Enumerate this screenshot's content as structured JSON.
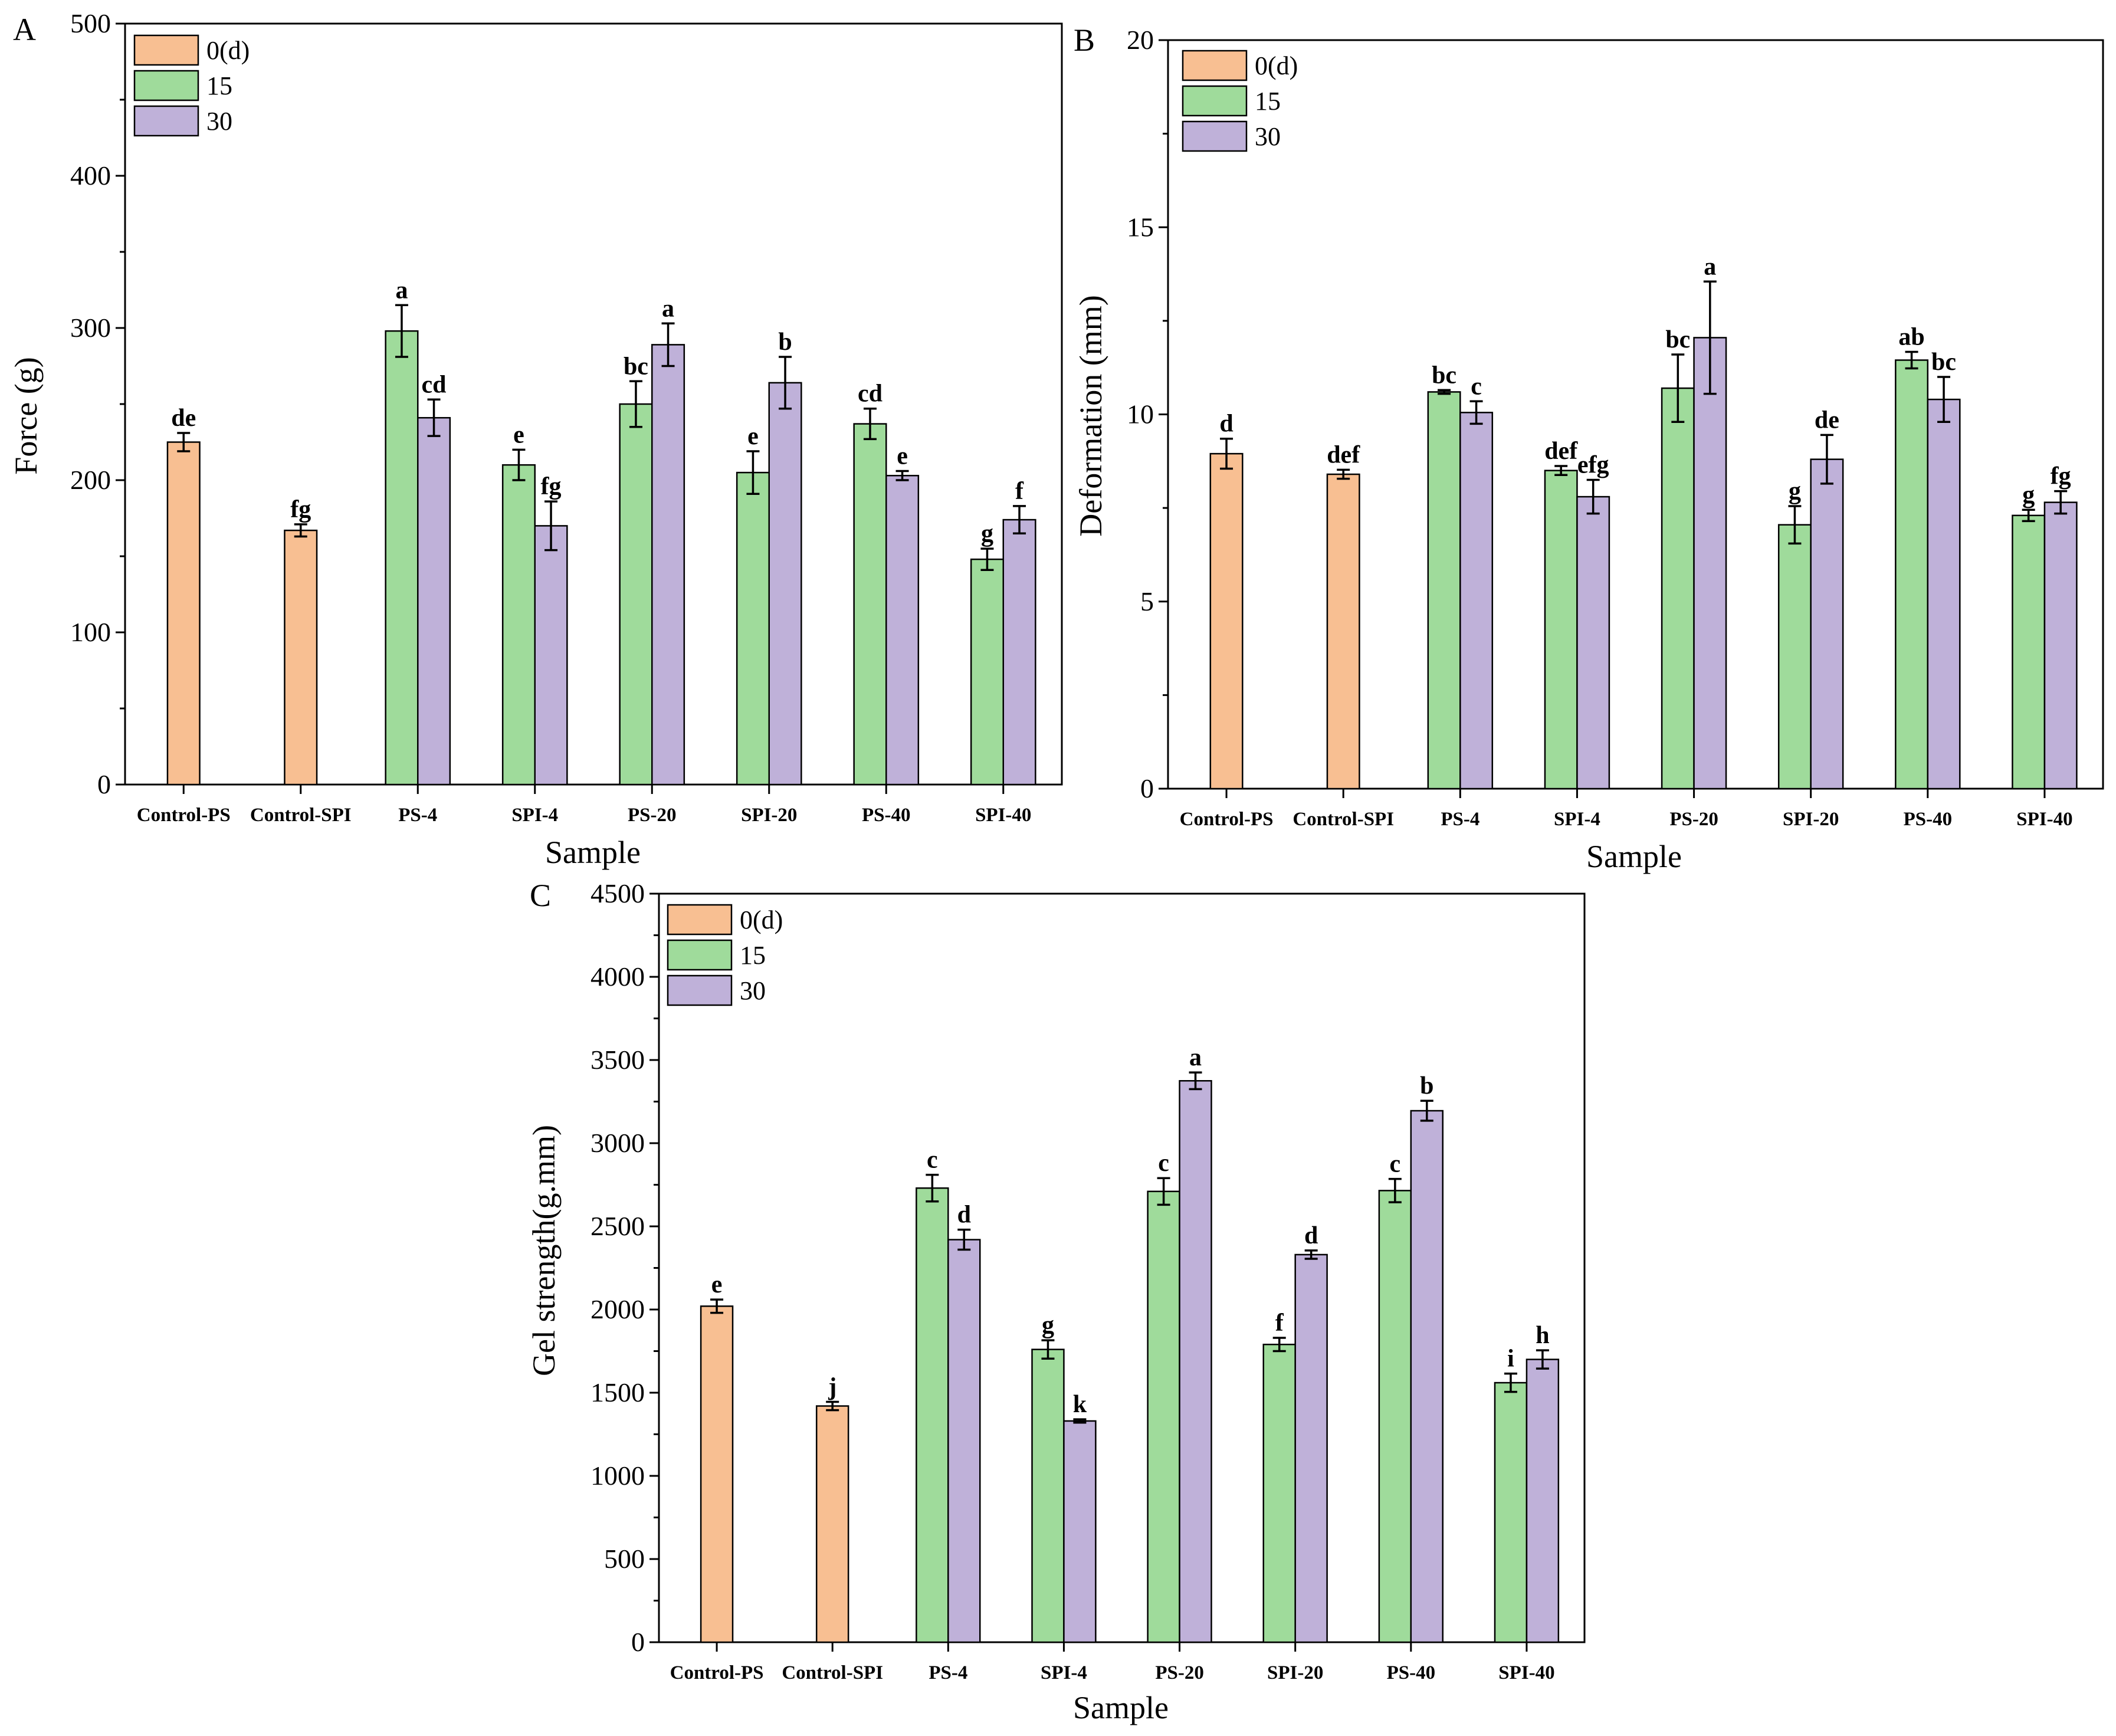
{
  "colors": {
    "d0": "#f8bf92",
    "d15": "#9fdb9b",
    "d30": "#bfb1d9",
    "axis": "#000000"
  },
  "legend": [
    "0(d)",
    "15",
    "30"
  ],
  "categories": [
    "Control-PS",
    "Control-SPI",
    "PS-4",
    "SPI-4",
    "PS-20",
    "SPI-20",
    "PS-40",
    "SPI-40"
  ],
  "chart_data": [
    {
      "panel": "A",
      "type": "bar",
      "xlabel": "Sample",
      "ylabel": "Force (g)",
      "ylim": [
        0,
        500
      ],
      "yticks": [
        0,
        100,
        200,
        300,
        400,
        500
      ],
      "categories": [
        "Control-PS",
        "Control-SPI",
        "PS-4",
        "SPI-4",
        "PS-20",
        "SPI-20",
        "PS-40",
        "SPI-40"
      ],
      "series": [
        {
          "name": "0(d)",
          "values": [
            225,
            167,
            null,
            null,
            null,
            null,
            null,
            null
          ],
          "errors": [
            6,
            4,
            null,
            null,
            null,
            null,
            null,
            null
          ],
          "labels": [
            "de",
            "fg",
            null,
            null,
            null,
            null,
            null,
            null
          ]
        },
        {
          "name": "15",
          "values": [
            null,
            null,
            298,
            210,
            250,
            205,
            237,
            148
          ],
          "errors": [
            null,
            null,
            17,
            10,
            15,
            14,
            10,
            7
          ],
          "labels": [
            null,
            null,
            "a",
            "e",
            "bc",
            "e",
            "cd",
            "g"
          ]
        },
        {
          "name": "30",
          "values": [
            null,
            null,
            241,
            170,
            289,
            264,
            203,
            174
          ],
          "errors": [
            null,
            null,
            12,
            16,
            14,
            17,
            3,
            9
          ],
          "labels": [
            null,
            null,
            "cd",
            "fg",
            "a",
            "b",
            "e",
            "f"
          ]
        }
      ]
    },
    {
      "panel": "B",
      "type": "bar",
      "xlabel": "Sample",
      "ylabel": "Deformation (mm)",
      "ylim": [
        0,
        20
      ],
      "yticks": [
        0,
        5,
        10,
        15,
        20
      ],
      "categories": [
        "Control-PS",
        "Control-SPI",
        "PS-4",
        "SPI-4",
        "PS-20",
        "SPI-20",
        "PS-40",
        "SPI-40"
      ],
      "series": [
        {
          "name": "0(d)",
          "values": [
            8.95,
            8.4,
            null,
            null,
            null,
            null,
            null,
            null
          ],
          "errors": [
            0.4,
            0.12,
            null,
            null,
            null,
            null,
            null,
            null
          ],
          "labels": [
            "d",
            "def",
            null,
            null,
            null,
            null,
            null,
            null
          ]
        },
        {
          "name": "15",
          "values": [
            null,
            null,
            10.6,
            8.5,
            10.7,
            7.05,
            11.45,
            7.3
          ],
          "errors": [
            null,
            null,
            0.05,
            0.12,
            0.9,
            0.5,
            0.22,
            0.15
          ],
          "labels": [
            null,
            null,
            "bc",
            "def",
            "bc",
            "g",
            "ab",
            "g"
          ]
        },
        {
          "name": "30",
          "values": [
            null,
            null,
            10.05,
            7.8,
            12.05,
            8.8,
            10.4,
            7.65
          ],
          "errors": [
            null,
            null,
            0.3,
            0.45,
            1.5,
            0.65,
            0.6,
            0.3
          ],
          "labels": [
            null,
            null,
            "c",
            "efg",
            "a",
            "de",
            "bc",
            "fg"
          ]
        }
      ]
    },
    {
      "panel": "C",
      "type": "bar",
      "xlabel": "Sample",
      "ylabel": "Gel strength(g.mm)",
      "ylim": [
        0,
        4500
      ],
      "yticks": [
        0,
        500,
        1000,
        1500,
        2000,
        2500,
        3000,
        3500,
        4000,
        4500
      ],
      "categories": [
        "Control-PS",
        "Control-SPI",
        "PS-4",
        "SPI-4",
        "PS-20",
        "SPI-20",
        "PS-40",
        "SPI-40"
      ],
      "series": [
        {
          "name": "0(d)",
          "values": [
            2020,
            1420,
            null,
            null,
            null,
            null,
            null,
            null
          ],
          "errors": [
            40,
            25,
            null,
            null,
            null,
            null,
            null,
            null
          ],
          "labels": [
            "e",
            "j",
            null,
            null,
            null,
            null,
            null,
            null
          ]
        },
        {
          "name": "15",
          "values": [
            null,
            null,
            2730,
            1760,
            2710,
            1790,
            2715,
            1560
          ],
          "errors": [
            null,
            null,
            80,
            55,
            80,
            40,
            70,
            55
          ],
          "labels": [
            null,
            null,
            "c",
            "g",
            "c",
            "f",
            "c",
            "i"
          ]
        },
        {
          "name": "30",
          "values": [
            null,
            null,
            2420,
            1330,
            3375,
            2330,
            3195,
            1700
          ],
          "errors": [
            null,
            null,
            60,
            10,
            50,
            25,
            60,
            55
          ],
          "labels": [
            null,
            null,
            "d",
            "k",
            "a",
            "d",
            "b",
            "h"
          ]
        }
      ]
    }
  ]
}
